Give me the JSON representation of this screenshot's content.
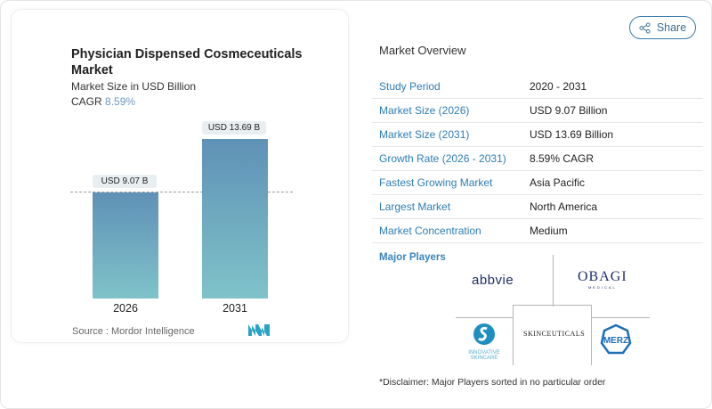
{
  "header": {
    "share_label": "Share",
    "share_icon": "share-icon"
  },
  "chart_card": {
    "title": "Physician Dispensed Cosmeceuticals Market",
    "subtitle": "Market Size in USD Billion",
    "cagr_label": "CAGR",
    "cagr_value": "8.59%",
    "source": "Source :  Mordor Intelligence"
  },
  "chart_data": {
    "type": "bar",
    "categories": [
      "2026",
      "2031"
    ],
    "values": [
      9.07,
      13.69
    ],
    "data_labels": [
      "USD 9.07 B",
      "USD 13.69 B"
    ],
    "title": "Physician Dispensed Cosmeceuticals Market",
    "ylabel": "Market Size in USD Billion",
    "colors": {
      "top": "#5f91b6",
      "bottom": "#7fc3c9"
    }
  },
  "overview": {
    "title": "Market Overview",
    "rows": [
      {
        "label": "Study Period",
        "value": "2020 - 2031"
      },
      {
        "label": "Market Size (2026)",
        "value": "USD 9.07 Billion"
      },
      {
        "label": "Market Size (2031)",
        "value": "USD 13.69 Billion"
      },
      {
        "label": "Growth Rate (2026 - 2031)",
        "value": "8.59% CAGR"
      },
      {
        "label": "Fastest Growing Market",
        "value": "Asia Pacific"
      },
      {
        "label": "Largest Market",
        "value": "North America"
      },
      {
        "label": "Market Concentration",
        "value": "Medium"
      }
    ]
  },
  "players": {
    "title": "Major Players",
    "logos": [
      "abbvie",
      "OBAGI MEDICAL",
      "INNOVATIVE SKINCARE",
      "SkinCeuticals",
      "MERZ"
    ],
    "disclaimer": "*Disclaimer: Major Players sorted in no particular order"
  }
}
